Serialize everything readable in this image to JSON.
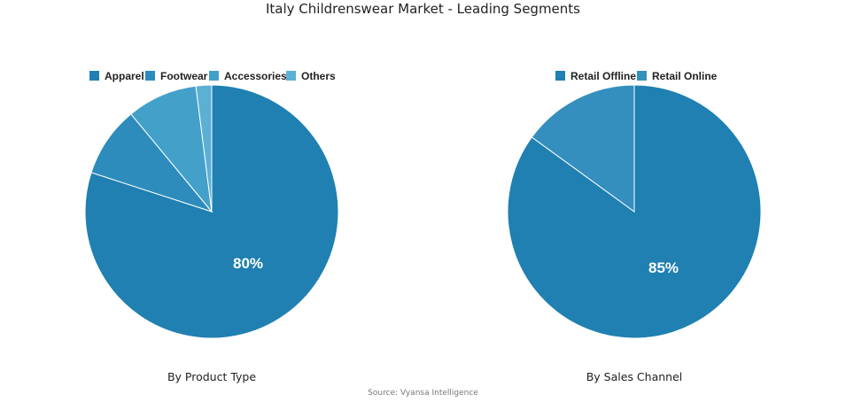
{
  "title": "Italy Childrenswear Market - Leading Segments",
  "source": "Source: Vyansa Intelligence",
  "chart_data": [
    {
      "type": "pie",
      "subtitle": "By Product Type",
      "labels": [
        "Apparel",
        "Footwear",
        "Accessories",
        "Others"
      ],
      "values": [
        80,
        9,
        9,
        2
      ],
      "colors": [
        "#1f80b1",
        "#2d8cbc",
        "#43a0c8",
        "#5cb0d4"
      ],
      "shown_label": "80%",
      "legend_position": "top"
    },
    {
      "type": "pie",
      "subtitle": "By Sales Channel",
      "labels": [
        "Retail Offline",
        "Retail Online"
      ],
      "values": [
        85,
        15
      ],
      "colors": [
        "#1f80b1",
        "#348fbf"
      ],
      "shown_label": "85%",
      "legend_position": "top"
    }
  ]
}
